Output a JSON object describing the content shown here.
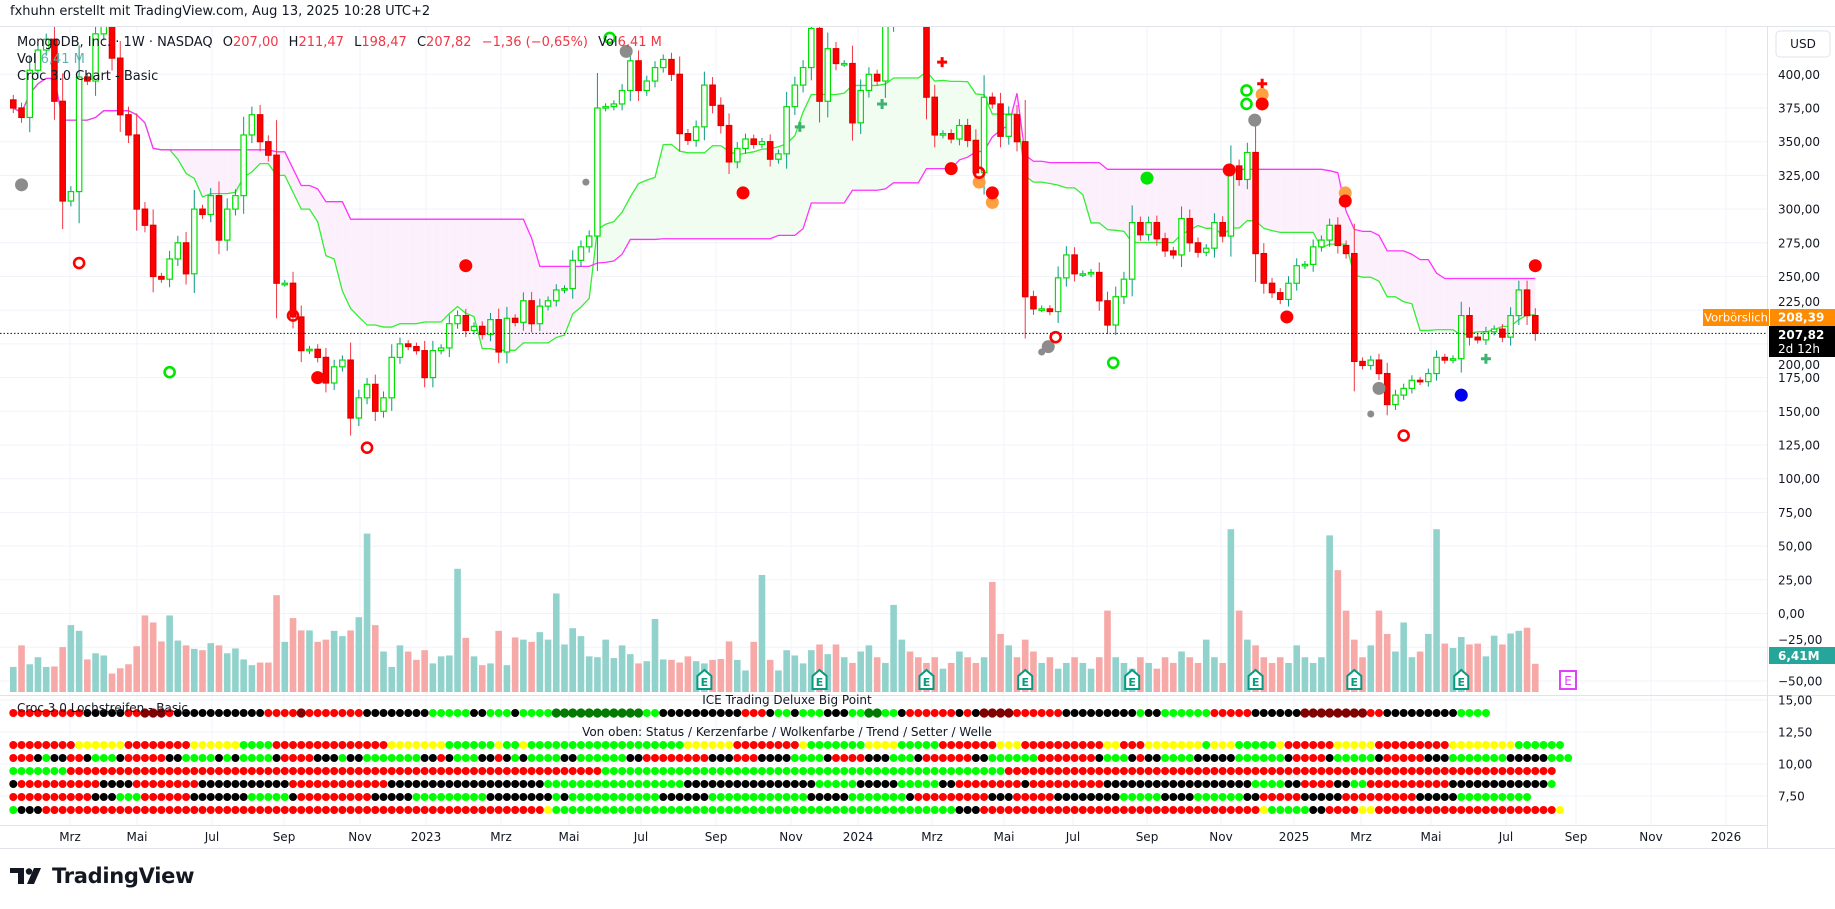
{
  "header": {
    "credit": "fxhuhn erstellt mit TradingView.com, Aug 13, 2025 10:28 UTC+2"
  },
  "legend": {
    "symbol": "MongoDB, Inc. · 1W · NASDAQ",
    "o_label": "O",
    "o_value": "207,00",
    "h_label": "H",
    "h_value": "211,47",
    "l_label": "L",
    "l_value": "198,47",
    "c_label": "C",
    "c_value": "207,82",
    "change": "−1,36 (−0,65%)",
    "vol_label": "Vol",
    "vol_value": "6,41 M",
    "vol_indicator_label": "Vol",
    "vol_indicator_value": "6,41 M",
    "indicator": "Croc 3.0 Chart - Basic"
  },
  "price_axis": {
    "currency_button": "USD",
    "labels": [
      "400,00",
      "375,00",
      "350,00",
      "325,00",
      "300,00",
      "275,00",
      "250,00",
      "225,00",
      "200,00",
      "175,00",
      "150,00",
      "125,00",
      "100,00",
      "75,00",
      "50,00",
      "25,00",
      "0,00",
      "−25,00",
      "−50,00"
    ],
    "premarket_label": "Vorbörslich",
    "premarket_price": "208,39",
    "last_price": "207,82",
    "countdown": "2d 12h",
    "volume_label": "6,41M"
  },
  "lower_pane": {
    "title_left": "Croc 3.0 Lochstreifen - Basic",
    "title_center": "ICE Trading Deluxe Big Point",
    "subtitle": "Von oben: Status / Kerzenfarbe / Wolkenfarbe / Trend / Setter / Welle",
    "axis_labels": [
      "15,00",
      "12,50",
      "10,00",
      "7,50"
    ],
    "legend_codes": {
      "R": "#ff0000",
      "G": "#00ff00",
      "Y": "#ffff00",
      "K": "#000000",
      "D": "#800000",
      "E": "#007a00"
    },
    "rows": [
      "R9K5R2D3R1K11R4D1R7K8G5K2G2G1K1G4E11G2K10R3K1G2K1G3K3G2E2G2K1R6K1R1K1D3D1R6K9G1K2G6R5K6D8R2K9G4",
      "R8Y6R8Y6G4R14Y7G6Y1G2Y1G19Y6R8Y1G7Y4G5R7Y3R4R6Y2R3Y7G1Y3G5Y1R6Y5R9Y8G6",
      "R3K1G1K2R2K1G3K1R5K2G4K1G1K1G4K1R4K3G1K2G7K2R1K1G3K2R1K1G1K1G4K2G6K2R8K3R3K4G4K1R4K3G3K1R6K2G6R3R4K1G3K1R1K2G4K5G6K1R4K1G5K1R5K3G7K5G3",
      "G7R56R9G49R6R61",
      "K1R10K4R8K11R12K17K2G17K16G5K5G5K2R8K1R3R6K18G4K2R4K2G2R10K12G1",
      "R10K3G3R6K7G5K1R9K5G9K4K4G1K1G11K6G12K5G7K1R9K3R5K8G5K4G6K2R5K5R9K5G9",
      "G1K3R59R2Y1G49K3R10R24Y1G5K2R4Y2R22Y1"
    ]
  },
  "time_axis": {
    "labels": [
      "Mrz",
      "Mai",
      "Jul",
      "Sep",
      "Nov",
      "2023",
      "Mrz",
      "Mai",
      "Jul",
      "Sep",
      "Nov",
      "2024",
      "Mrz",
      "Mai",
      "Jul",
      "Sep",
      "Nov",
      "2025",
      "Mrz",
      "Mai",
      "Jul",
      "Sep",
      "Nov",
      "2026"
    ]
  },
  "earnings_marker": "E",
  "branding": {
    "logo_text": "TradingView"
  },
  "colors": {
    "up": "#00e000",
    "down": "#ff0000",
    "vol_up": "#92d2cc",
    "vol_down": "#f7a9a8",
    "cloud_upper": "#ff33ff",
    "cloud_lower": "#33ee33",
    "accent_orange": "#ff8c00",
    "volume_teal": "#26a69a",
    "earnings_magenta": "#e040fb"
  },
  "chart_data": {
    "type": "candlestick",
    "interval": "1W",
    "ylim": [
      -50,
      440
    ],
    "close": [
      375,
      368,
      403,
      418,
      426,
      380,
      306,
      313,
      398,
      395,
      430,
      440,
      412,
      370,
      355,
      300,
      288,
      250,
      248,
      263,
      275,
      252,
      300,
      296,
      310,
      277,
      300,
      310,
      355,
      370,
      350,
      340,
      245,
      245,
      220,
      195,
      196,
      190,
      171,
      183,
      188,
      145,
      160,
      170,
      150,
      160,
      190,
      200,
      198,
      195,
      175,
      195,
      197,
      215,
      221,
      210,
      213,
      207,
      218,
      194,
      219,
      216,
      232,
      215,
      228,
      232,
      240,
      241,
      262,
      272,
      280,
      375,
      376,
      378,
      388,
      410,
      388,
      395,
      405,
      411,
      400,
      356,
      351,
      361,
      392,
      377,
      362,
      335,
      345,
      352,
      348,
      350,
      337,
      341,
      376,
      392,
      405,
      434,
      380,
      419,
      408,
      408,
      364,
      388,
      400,
      395,
      436,
      445,
      445,
      443,
      440,
      383,
      355,
      356,
      352,
      362,
      351,
      327,
      383,
      378,
      354,
      370,
      350,
      235,
      226,
      226,
      224,
      249,
      266,
      252,
      252,
      253,
      232,
      214,
      235,
      248,
      290,
      281,
      290,
      278,
      269,
      266,
      293,
      275,
      268,
      271,
      290,
      280,
      332,
      322,
      342,
      267,
      245,
      238,
      233,
      245,
      258,
      259,
      272,
      277,
      288,
      273,
      267,
      187,
      184,
      188,
      178,
      155,
      162,
      167,
      173,
      172,
      178,
      190,
      188,
      189,
      221,
      205,
      203,
      209,
      211,
      205,
      221,
      240,
      221,
      207.82
    ],
    "volume_millions": [
      5.7,
      10.6,
      6.3,
      7.9,
      5.7,
      5.8,
      10.2,
      15.2,
      13.9,
      7.4,
      8.8,
      8.3,
      4.2,
      5.4,
      6.3,
      10.4,
      17.4,
      15.8,
      11.5,
      17.4,
      11.7,
      10.6,
      9.8,
      9.5,
      11.1,
      10.6,
      8.8,
      9.9,
      7.4,
      6.1,
      6.7,
      6.7,
      22,
      11.4,
      16.8,
      14,
      14,
      11.4,
      11.9,
      13.9,
      12.7,
      14,
      17,
      36,
      15.2,
      9.2,
      5.7,
      10.6,
      9.2,
      7.3,
      9.5,
      6.5,
      8.1,
      8.3,
      28,
      12.3,
      8.1,
      6.1,
      6.5,
      13.9,
      6.1,
      12.4,
      11.9,
      11.4,
      13.6,
      11.9,
      22.4,
      10.8,
      14.5,
      12.7,
      8.1,
      7.9,
      11.9,
      7.7,
      10.6,
      8.6,
      6.5,
      7,
      16.6,
      7.4,
      7.3,
      6.7,
      8.1,
      7,
      6.5,
      7.3,
      7.5,
      11.5,
      7.3,
      4.9,
      11.4,
      26.6,
      7.3,
      4.9,
      9.5,
      8.3,
      6.5,
      9.5,
      10.8,
      8.6,
      10.8,
      7.9,
      6.6,
      9.2,
      10.6,
      7.9,
      6.6,
      19.8,
      11.9,
      9.2,
      7.9,
      6.6,
      7.9,
      5.3,
      6.6,
      9.2,
      7.9,
      6.6,
      7.9,
      25,
      13.2,
      10.6,
      7.9,
      11.9,
      9.2,
      6.6,
      7.9,
      5.3,
      6.6,
      7.9,
      6.6,
      5.3,
      7.9,
      18.5,
      7.9,
      6.6,
      5.3,
      7.9,
      6.6,
      5.3,
      7.9,
      6.6,
      9.2,
      7.9,
      6.6,
      11.9,
      7.9,
      6.6,
      37,
      18.5,
      11.9,
      10.6,
      7.9,
      6.6,
      7.9,
      6.6,
      10.6,
      7.9,
      6.6,
      7.9,
      35.6,
      27.7,
      18.5,
      11.9,
      7.9,
      10.6,
      18.5,
      13.2,
      9.2,
      15.8,
      7.9,
      9.2,
      13.2,
      37,
      11,
      10,
      12.5,
      10.8,
      11,
      8.1,
      12.8,
      10.8,
      13.3,
      13.9,
      14.6,
      6.41
    ],
    "earnings_weeks": [
      84,
      98,
      111,
      123,
      136,
      151,
      163,
      176
    ],
    "signals": [
      {
        "week": 1,
        "price": 318,
        "shape": "dot",
        "color": "#8c8c8c"
      },
      {
        "week": 8,
        "price": 260,
        "shape": "ring",
        "color": "#ff0000"
      },
      {
        "week": 19,
        "price": 179,
        "shape": "ring",
        "color": "#00e600"
      },
      {
        "week": 34,
        "price": 221,
        "shape": "ring",
        "color": "#ff0000"
      },
      {
        "week": 37,
        "price": 175,
        "shape": "dot",
        "color": "#ff0000"
      },
      {
        "week": 43,
        "price": 123,
        "shape": "ring",
        "color": "#ff0000"
      },
      {
        "week": 55,
        "price": 258,
        "shape": "dot",
        "color": "#ff0000"
      },
      {
        "week": 69.6,
        "price": 320,
        "shape": "small-dot",
        "color": "#8c8c8c"
      },
      {
        "week": 72.5,
        "price": 427,
        "shape": "ring",
        "color": "#00e600"
      },
      {
        "week": 74.5,
        "price": 417,
        "shape": "dot",
        "color": "#8c8c8c"
      },
      {
        "week": 88.7,
        "price": 312,
        "shape": "dot",
        "color": "#ff0000"
      },
      {
        "week": 95.6,
        "price": 361,
        "shape": "plus",
        "color": "#3cb371"
      },
      {
        "week": 105.6,
        "price": 378,
        "shape": "plus",
        "color": "#3cb371"
      },
      {
        "week": 112.9,
        "price": 409,
        "shape": "plus",
        "color": "#ff0000"
      },
      {
        "week": 114,
        "price": 330,
        "shape": "dot",
        "color": "#ff0000"
      },
      {
        "week": 117.4,
        "price": 320,
        "shape": "dot",
        "color": "#ffa040"
      },
      {
        "week": 117.4,
        "price": 327,
        "shape": "ring",
        "color": "#ff0000"
      },
      {
        "week": 119,
        "price": 305,
        "shape": "dot",
        "color": "#ffa040"
      },
      {
        "week": 119,
        "price": 312,
        "shape": "dot",
        "color": "#ff0000"
      },
      {
        "week": 125,
        "price": 194,
        "shape": "small-dot",
        "color": "#8c8c8c"
      },
      {
        "week": 125.8,
        "price": 198,
        "shape": "dot",
        "color": "#8c8c8c"
      },
      {
        "week": 126.7,
        "price": 205,
        "shape": "ring",
        "color": "#ff0000"
      },
      {
        "week": 133.7,
        "price": 186,
        "shape": "ring",
        "color": "#00e600"
      },
      {
        "week": 137.8,
        "price": 323,
        "shape": "dot",
        "color": "#00e600"
      },
      {
        "week": 147.8,
        "price": 329,
        "shape": "dot",
        "color": "#ff0000"
      },
      {
        "week": 149.9,
        "price": 388,
        "shape": "ring",
        "color": "#00e600"
      },
      {
        "week": 149.9,
        "price": 378,
        "shape": "ring",
        "color": "#00e600"
      },
      {
        "week": 150.9,
        "price": 366,
        "shape": "dot",
        "color": "#8c8c8c"
      },
      {
        "week": 151.8,
        "price": 393,
        "shape": "plus",
        "color": "#ff0000"
      },
      {
        "week": 151.8,
        "price": 385,
        "shape": "dot",
        "color": "#ffa040"
      },
      {
        "week": 151.8,
        "price": 378,
        "shape": "dot",
        "color": "#ff0000"
      },
      {
        "week": 154.8,
        "price": 220,
        "shape": "dot",
        "color": "#ff0000"
      },
      {
        "week": 161.9,
        "price": 312,
        "shape": "dot",
        "color": "#ffa040"
      },
      {
        "week": 161.9,
        "price": 306,
        "shape": "dot",
        "color": "#ff0000"
      },
      {
        "week": 165,
        "price": 148,
        "shape": "small-dot",
        "color": "#8c8c8c"
      },
      {
        "week": 166,
        "price": 167,
        "shape": "dot",
        "color": "#8c8c8c"
      },
      {
        "week": 169,
        "price": 132,
        "shape": "ring",
        "color": "#ff0000"
      },
      {
        "week": 176,
        "price": 162,
        "shape": "dot",
        "color": "#0000ee"
      },
      {
        "week": 179,
        "price": 189,
        "shape": "plus",
        "color": "#3cb371"
      },
      {
        "week": 185,
        "price": 258,
        "shape": "dot",
        "color": "#ff0000"
      }
    ]
  }
}
